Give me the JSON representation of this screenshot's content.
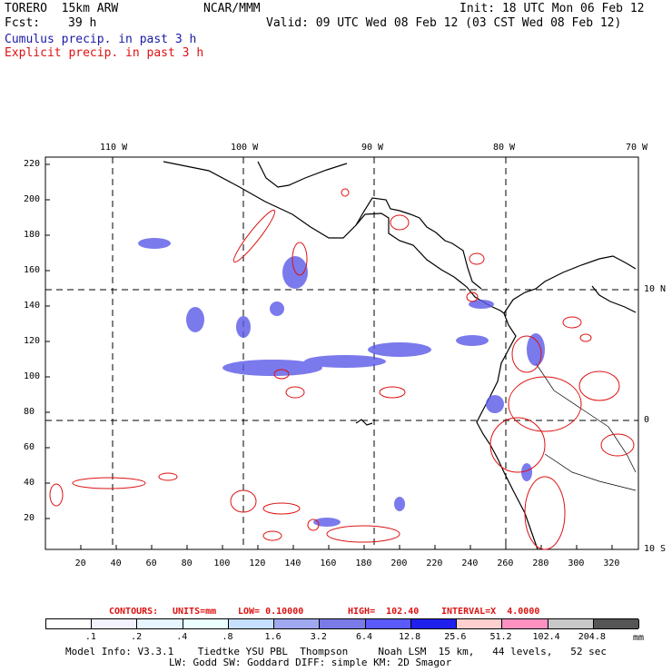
{
  "header": {
    "model": "TORERO  15km ARW",
    "org": "NCAR/MMM",
    "init": "Init: 18 UTC Mon 06 Feb 12",
    "fcst_label": "Fcst:",
    "fcst_value": "39 h",
    "valid": "Valid: 09 UTC Wed 08 Feb 12 (03 CST Wed 08 Feb 12)",
    "legend_cumulus": "Cumulus precip. in past 3 h",
    "legend_explicit": "Explicit precip. in past 3 h"
  },
  "colors": {
    "cumulus": "#1a1aa6",
    "explicit": "#dd1111",
    "coast": "#000000"
  },
  "axes": {
    "top_lon_labels": [
      "110 W",
      "100 W",
      "90 W",
      "80 W",
      "70 W"
    ],
    "right_lat_labels": [
      "10 N",
      "0",
      "10 S"
    ],
    "y_ticks": [
      "220",
      "200",
      "180",
      "160",
      "140",
      "120",
      "100",
      "80",
      "60",
      "40",
      "20"
    ],
    "x_ticks": [
      "20",
      "40",
      "60",
      "80",
      "100",
      "120",
      "140",
      "160",
      "180",
      "200",
      "220",
      "240",
      "260",
      "280",
      "300",
      "320"
    ]
  },
  "contours": {
    "label": "CONTOURS:",
    "units": "UNITS=mm",
    "low": "LOW= 0.10000",
    "high": "HIGH=  102.40",
    "interval": "INTERVAL=X  4.0000"
  },
  "colorbar": {
    "colors": [
      "#ffffff",
      "#f2f2ff",
      "#e6f5ff",
      "#eaffff",
      "#c8e0ff",
      "#a0a8f0",
      "#7a7ae8",
      "#5a5aff",
      "#2020ee",
      "#ffd0d0",
      "#ff90c0",
      "#c8c8c8",
      "#555555",
      "#333333",
      "#cc99ff"
    ],
    "labels": [
      ".1",
      ".2",
      ".4",
      ".8",
      "1.6",
      "3.2",
      "6.4",
      "12.8",
      "25.6",
      "51.2",
      "102.4",
      "204.8"
    ],
    "units": "mm"
  },
  "footer": {
    "line1": "Model Info: V3.3.1    Tiedtke YSU PBL  Thompson     Noah LSM  15 km,   44 levels,   52 sec",
    "line2": "LW: Godd SW: Goddard DIFF: simple KM: 2D Smagor"
  }
}
